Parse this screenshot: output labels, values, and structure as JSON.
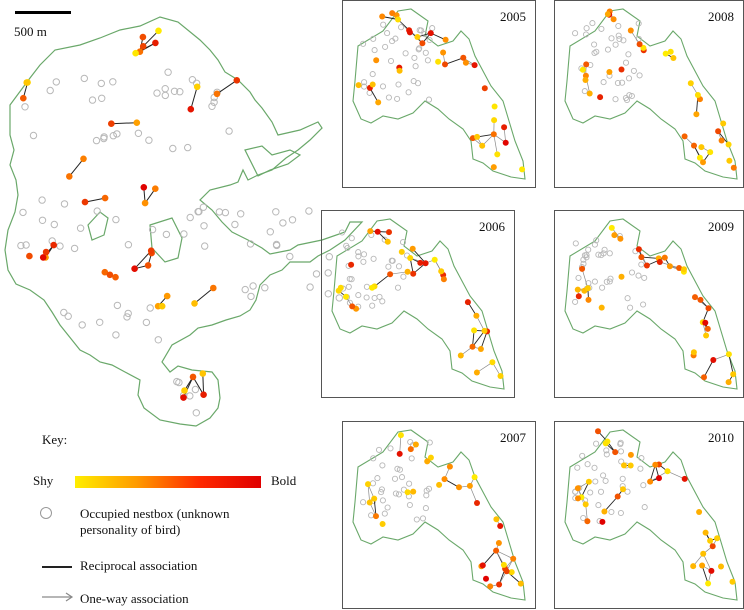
{
  "figure": {
    "scale_label": "500 m",
    "key": {
      "title": "Key:",
      "shy_label": "Shy",
      "bold_label": "Bold",
      "nestbox_label": "Occupied nestbox (unknown personality of bird)",
      "reciprocal_label": "Reciprocal association",
      "oneway_label": "One-way association"
    },
    "panels": [
      {
        "id": "p2005",
        "year": "2005"
      },
      {
        "id": "p2008",
        "year": "2008"
      },
      {
        "id": "p2006",
        "year": "2006"
      },
      {
        "id": "p2009",
        "year": "2009"
      },
      {
        "id": "p2007",
        "year": "2007"
      },
      {
        "id": "p2010",
        "year": "2010"
      }
    ],
    "colors": {
      "outline": "#6aa86a",
      "shy": "#ffee00",
      "mid": "#ff8c00",
      "bold": "#e00000",
      "nestbox": "#b8b8b8",
      "reciprocal": "#222222",
      "oneway": "#8a8a8a"
    }
  }
}
